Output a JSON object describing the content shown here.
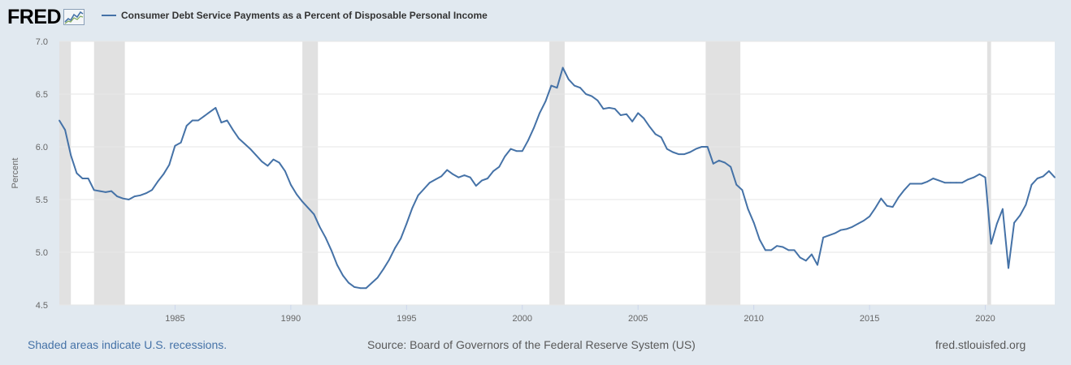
{
  "header": {
    "logo_text": "FRED",
    "logo_icon": "line-graph-icon",
    "legend_label": "Consumer Debt Service Payments as a Percent of Disposable Personal Income"
  },
  "footer": {
    "recession_note": "Shaded areas indicate U.S. recessions.",
    "source": "Source: Board of Governors of the Federal Reserve System (US)",
    "site": "fred.stlouisfed.org"
  },
  "colors": {
    "line": "#4572a7",
    "recession": "#e1e1e1",
    "background": "#e1e9f0",
    "plot": "#ffffff"
  },
  "chart_data": {
    "type": "line",
    "title": "",
    "ylabel": "Percent",
    "xlabel": "",
    "ylim": [
      4.5,
      7.0
    ],
    "xlim": [
      1980.0,
      2023.0
    ],
    "yticks": [
      "4.5",
      "5.0",
      "5.5",
      "6.0",
      "6.5",
      "7.0"
    ],
    "xticks": [
      "1985",
      "1990",
      "1995",
      "2000",
      "2005",
      "2010",
      "2015",
      "2020"
    ],
    "grid": true,
    "legend_position": "top-left",
    "recessions": [
      [
        1980.0,
        1980.5
      ],
      [
        1981.5,
        1982.83
      ],
      [
        1990.5,
        1991.17
      ],
      [
        2001.17,
        2001.83
      ],
      [
        2007.92,
        2009.42
      ],
      [
        2020.08,
        2020.25
      ]
    ],
    "series": [
      {
        "name": "Consumer Debt Service Payments as a Percent of Disposable Personal Income",
        "x": [
          1980.0,
          1980.25,
          1980.5,
          1980.75,
          1981.0,
          1981.25,
          1981.5,
          1981.75,
          1982.0,
          1982.25,
          1982.5,
          1982.75,
          1983.0,
          1983.25,
          1983.5,
          1983.75,
          1984.0,
          1984.25,
          1984.5,
          1984.75,
          1985.0,
          1985.25,
          1985.5,
          1985.75,
          1986.0,
          1986.25,
          1986.5,
          1986.75,
          1987.0,
          1987.25,
          1987.5,
          1987.75,
          1988.0,
          1988.25,
          1988.5,
          1988.75,
          1989.0,
          1989.25,
          1989.5,
          1989.75,
          1990.0,
          1990.25,
          1990.5,
          1990.75,
          1991.0,
          1991.25,
          1991.5,
          1991.75,
          1992.0,
          1992.25,
          1992.5,
          1992.75,
          1993.0,
          1993.25,
          1993.5,
          1993.75,
          1994.0,
          1994.25,
          1994.5,
          1994.75,
          1995.0,
          1995.25,
          1995.5,
          1995.75,
          1996.0,
          1996.25,
          1996.5,
          1996.75,
          1997.0,
          1997.25,
          1997.5,
          1997.75,
          1998.0,
          1998.25,
          1998.5,
          1998.75,
          1999.0,
          1999.25,
          1999.5,
          1999.75,
          2000.0,
          2000.25,
          2000.5,
          2000.75,
          2001.0,
          2001.25,
          2001.5,
          2001.75,
          2002.0,
          2002.25,
          2002.5,
          2002.75,
          2003.0,
          2003.25,
          2003.5,
          2003.75,
          2004.0,
          2004.25,
          2004.5,
          2004.75,
          2005.0,
          2005.25,
          2005.5,
          2005.75,
          2006.0,
          2006.25,
          2006.5,
          2006.75,
          2007.0,
          2007.25,
          2007.5,
          2007.75,
          2008.0,
          2008.25,
          2008.5,
          2008.75,
          2009.0,
          2009.25,
          2009.5,
          2009.75,
          2010.0,
          2010.25,
          2010.5,
          2010.75,
          2011.0,
          2011.25,
          2011.5,
          2011.75,
          2012.0,
          2012.25,
          2012.5,
          2012.75,
          2013.0,
          2013.25,
          2013.5,
          2013.75,
          2014.0,
          2014.25,
          2014.5,
          2014.75,
          2015.0,
          2015.25,
          2015.5,
          2015.75,
          2016.0,
          2016.25,
          2016.5,
          2016.75,
          2017.0,
          2017.25,
          2017.5,
          2017.75,
          2018.0,
          2018.25,
          2018.5,
          2018.75,
          2019.0,
          2019.25,
          2019.5,
          2019.75,
          2020.0,
          2020.25,
          2020.5,
          2020.75,
          2021.0,
          2021.25,
          2021.5,
          2021.75,
          2022.0,
          2022.25,
          2022.5,
          2022.75,
          2023.0
        ],
        "values": [
          6.25,
          6.16,
          5.92,
          5.75,
          5.7,
          5.7,
          5.59,
          5.58,
          5.57,
          5.58,
          5.53,
          5.51,
          5.5,
          5.53,
          5.54,
          5.56,
          5.59,
          5.67,
          5.74,
          5.83,
          6.01,
          6.04,
          6.2,
          6.25,
          6.25,
          6.29,
          6.33,
          6.37,
          6.23,
          6.25,
          6.16,
          6.08,
          6.03,
          5.98,
          5.92,
          5.86,
          5.82,
          5.88,
          5.85,
          5.77,
          5.64,
          5.55,
          5.48,
          5.42,
          5.36,
          5.24,
          5.14,
          5.02,
          4.88,
          4.78,
          4.71,
          4.67,
          4.66,
          4.66,
          4.71,
          4.76,
          4.84,
          4.93,
          5.04,
          5.13,
          5.27,
          5.42,
          5.54,
          5.6,
          5.66,
          5.69,
          5.72,
          5.78,
          5.74,
          5.71,
          5.73,
          5.71,
          5.63,
          5.68,
          5.7,
          5.77,
          5.81,
          5.91,
          5.98,
          5.96,
          5.96,
          6.06,
          6.18,
          6.32,
          6.43,
          6.58,
          6.56,
          6.75,
          6.64,
          6.58,
          6.56,
          6.5,
          6.48,
          6.44,
          6.36,
          6.37,
          6.36,
          6.3,
          6.31,
          6.24,
          6.32,
          6.27,
          6.19,
          6.12,
          6.09,
          5.98,
          5.95,
          5.93,
          5.93,
          5.95,
          5.98,
          6.0,
          6.0,
          5.84,
          5.87,
          5.85,
          5.81,
          5.64,
          5.59,
          5.41,
          5.28,
          5.12,
          5.02,
          5.02,
          5.06,
          5.05,
          5.02,
          5.02,
          4.95,
          4.92,
          4.98,
          4.88,
          5.14,
          5.16,
          5.18,
          5.21,
          5.22,
          5.24,
          5.27,
          5.3,
          5.34,
          5.42,
          5.51,
          5.44,
          5.43,
          5.52,
          5.59,
          5.65,
          5.65,
          5.65,
          5.67,
          5.7,
          5.68,
          5.66,
          5.66,
          5.66,
          5.66,
          5.69,
          5.71,
          5.74,
          5.71,
          5.08,
          5.27,
          5.41,
          4.85,
          5.28,
          5.35,
          5.45,
          5.64,
          5.7,
          5.72,
          5.77,
          5.71
        ]
      }
    ]
  }
}
